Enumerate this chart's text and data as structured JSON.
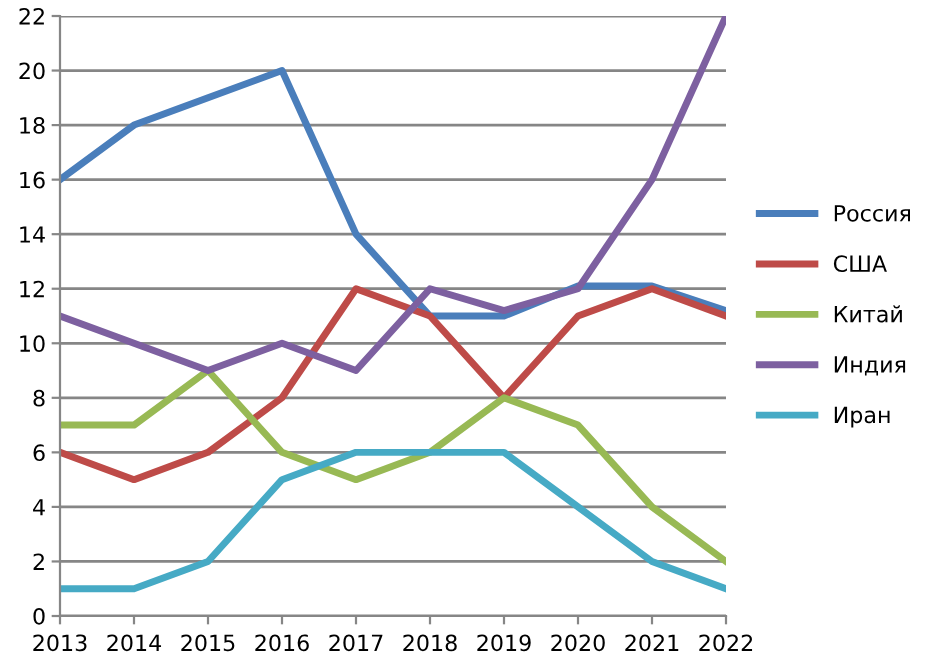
{
  "chart_data": {
    "type": "line",
    "x": [
      2013,
      2014,
      2015,
      2016,
      2017,
      2018,
      2019,
      2020,
      2021,
      2022
    ],
    "series": [
      {
        "name": "Россия",
        "color": "#4a7ebb",
        "values": [
          16,
          18,
          19,
          20,
          14,
          11,
          11,
          12.1,
          12.1,
          11.2
        ]
      },
      {
        "name": "США",
        "color": "#be4b48",
        "values": [
          6,
          5,
          6,
          8,
          12,
          11,
          8,
          11,
          12,
          11
        ]
      },
      {
        "name": "Китай",
        "color": "#98b954",
        "values": [
          7,
          7,
          9,
          6,
          5,
          6,
          8,
          7,
          4,
          2
        ]
      },
      {
        "name": "Индия",
        "color": "#7d60a0",
        "values": [
          11,
          10,
          9,
          10,
          9,
          12,
          11.2,
          12,
          16,
          22
        ]
      },
      {
        "name": "Иран",
        "color": "#46aac5",
        "values": [
          1,
          1,
          2,
          5,
          6,
          6,
          6,
          4,
          2,
          1
        ]
      }
    ],
    "xlim": [
      2013,
      2022
    ],
    "xticks": [
      2013,
      2014,
      2015,
      2016,
      2017,
      2018,
      2019,
      2020,
      2021,
      2022
    ],
    "ylim": [
      0,
      22
    ],
    "yticks": [
      0,
      2,
      4,
      6,
      8,
      10,
      12,
      14,
      16,
      18,
      20,
      22
    ],
    "grid": "y",
    "legend": "right",
    "marker": "none",
    "line_style": "solid"
  }
}
